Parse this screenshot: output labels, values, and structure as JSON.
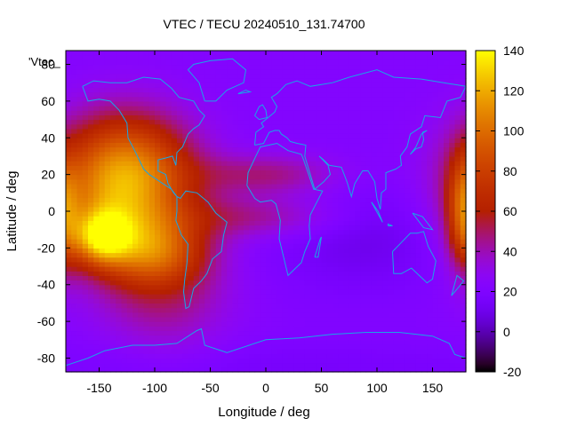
{
  "chart_data": {
    "type": "heatmap",
    "title": "VTEC / TECU 20240510_131.74700",
    "legend_key": "'Vtec_",
    "xlabel": "Longitude / deg",
    "ylabel": "Latitude / deg",
    "xlim": [
      -180,
      180
    ],
    "ylim": [
      -87.5,
      87.5
    ],
    "x_ticks": [
      -150,
      -100,
      -50,
      0,
      50,
      100,
      150
    ],
    "y_ticks": [
      -80,
      -60,
      -40,
      -20,
      0,
      20,
      40,
      60,
      80
    ],
    "x_tick_labels": [
      "-150",
      "-100",
      "-50",
      "0",
      "50",
      "100",
      "150"
    ],
    "y_tick_labels": [
      "-80",
      "-60",
      "-40",
      "-20",
      "0",
      "20",
      "40",
      "60",
      "80"
    ],
    "colorbar": {
      "range": [
        -20,
        140
      ],
      "ticks": [
        -20,
        0,
        20,
        40,
        60,
        80,
        100,
        120,
        140
      ],
      "tick_labels": [
        "-20",
        "0",
        "20",
        "40",
        "60",
        "80",
        "100",
        "120",
        "140"
      ]
    },
    "grid_resolution_deg": {
      "lon": 5,
      "lat": 2.5
    },
    "vtec_features": {
      "background": 22,
      "enhancements": [
        {
          "lon": -130,
          "lat": 10,
          "peak": 88,
          "lon_width": 42,
          "lat_width": 26
        },
        {
          "lon": -148,
          "lat": -14,
          "peak": 72,
          "lon_width": 18,
          "lat_width": 10
        },
        {
          "lon": -100,
          "lat": -22,
          "peak": 40,
          "lon_width": 30,
          "lat_width": 12
        },
        {
          "lon": -120,
          "lat": 30,
          "peak": 22,
          "lon_width": 40,
          "lat_width": 18
        },
        {
          "lon": -90,
          "lat": -40,
          "peak": 25,
          "lon_width": 40,
          "lat_width": 25
        },
        {
          "lon": 0,
          "lat": 20,
          "peak": 25,
          "lon_width": 45,
          "lat_width": 8
        },
        {
          "lon": -10,
          "lat": -3,
          "peak": 22,
          "lon_width": 55,
          "lat_width": 8
        },
        {
          "lon": 178,
          "lat": 0,
          "peak": 48,
          "lon_width": 10,
          "lat_width": 20
        }
      ],
      "depletions": [
        {
          "lon": 90,
          "lat": -15,
          "depth": 12,
          "lon_width": 60,
          "lat_width": 20
        },
        {
          "lon": 0,
          "lat": -85,
          "depth": 6,
          "lon_width": 200,
          "lat_width": 10
        }
      ]
    }
  }
}
